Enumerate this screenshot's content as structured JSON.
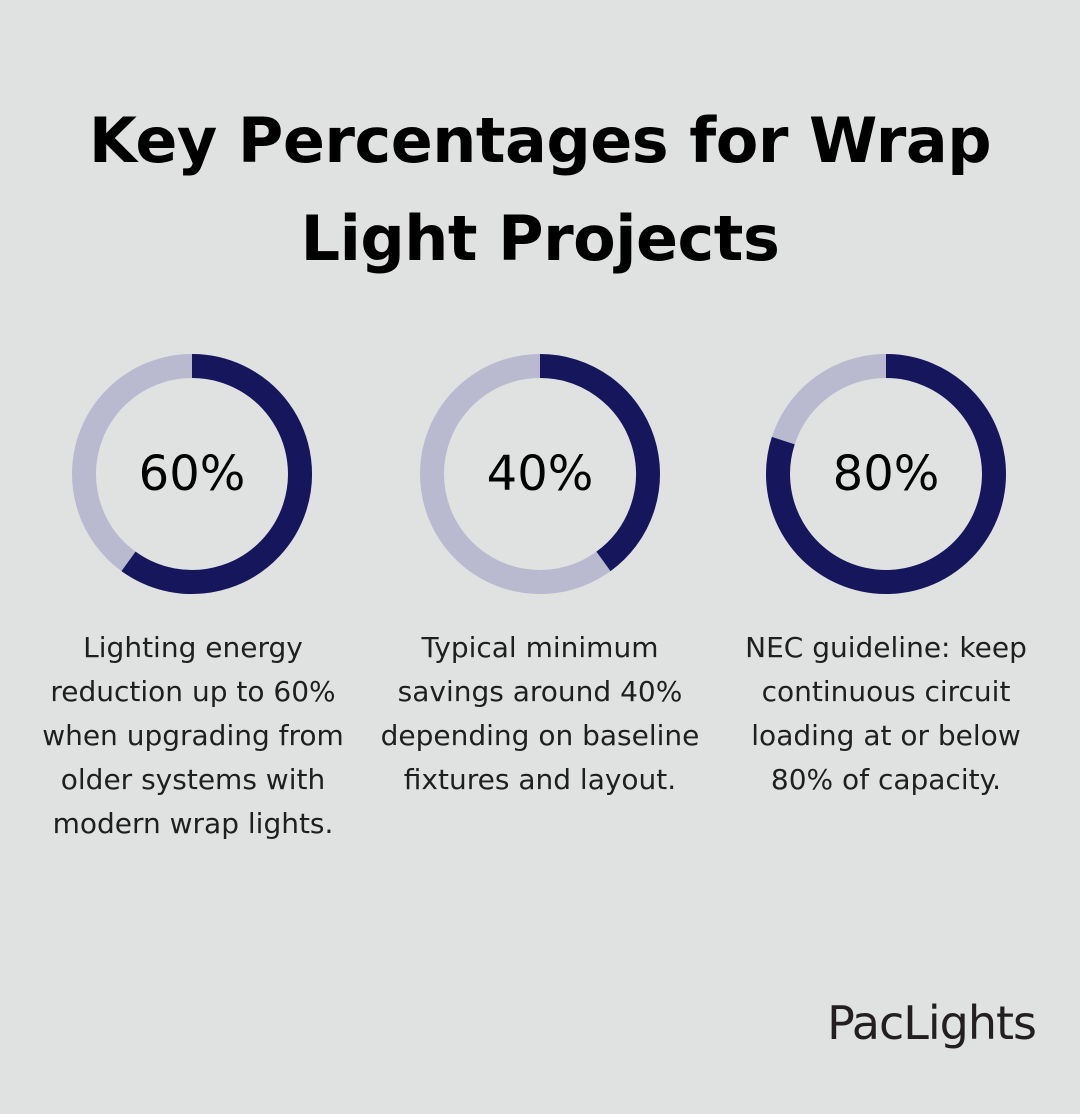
{
  "title": {
    "line1": "Key Percentages for Wrap",
    "line2": "Light Projects"
  },
  "colors": {
    "background": "#e0e2e1",
    "filled": "#16165c",
    "track": "#b9b9d0"
  },
  "chart_data": {
    "type": "pie",
    "variant": "donut",
    "series": [
      {
        "label": "60%",
        "value": 60,
        "max": 100,
        "caption": "Lighting energy reduction up to 60% when upgrading from older systems with modern wrap lights."
      },
      {
        "label": "40%",
        "value": 40,
        "max": 100,
        "caption": "Typical minimum savings around 40% depending on baseline fixtures and layout."
      },
      {
        "label": "80%",
        "value": 80,
        "max": 100,
        "caption": "NEC guideline: keep continuous circuit loading at or below 80% of capacity."
      }
    ]
  },
  "brand": {
    "logo_text": "PacLights"
  }
}
